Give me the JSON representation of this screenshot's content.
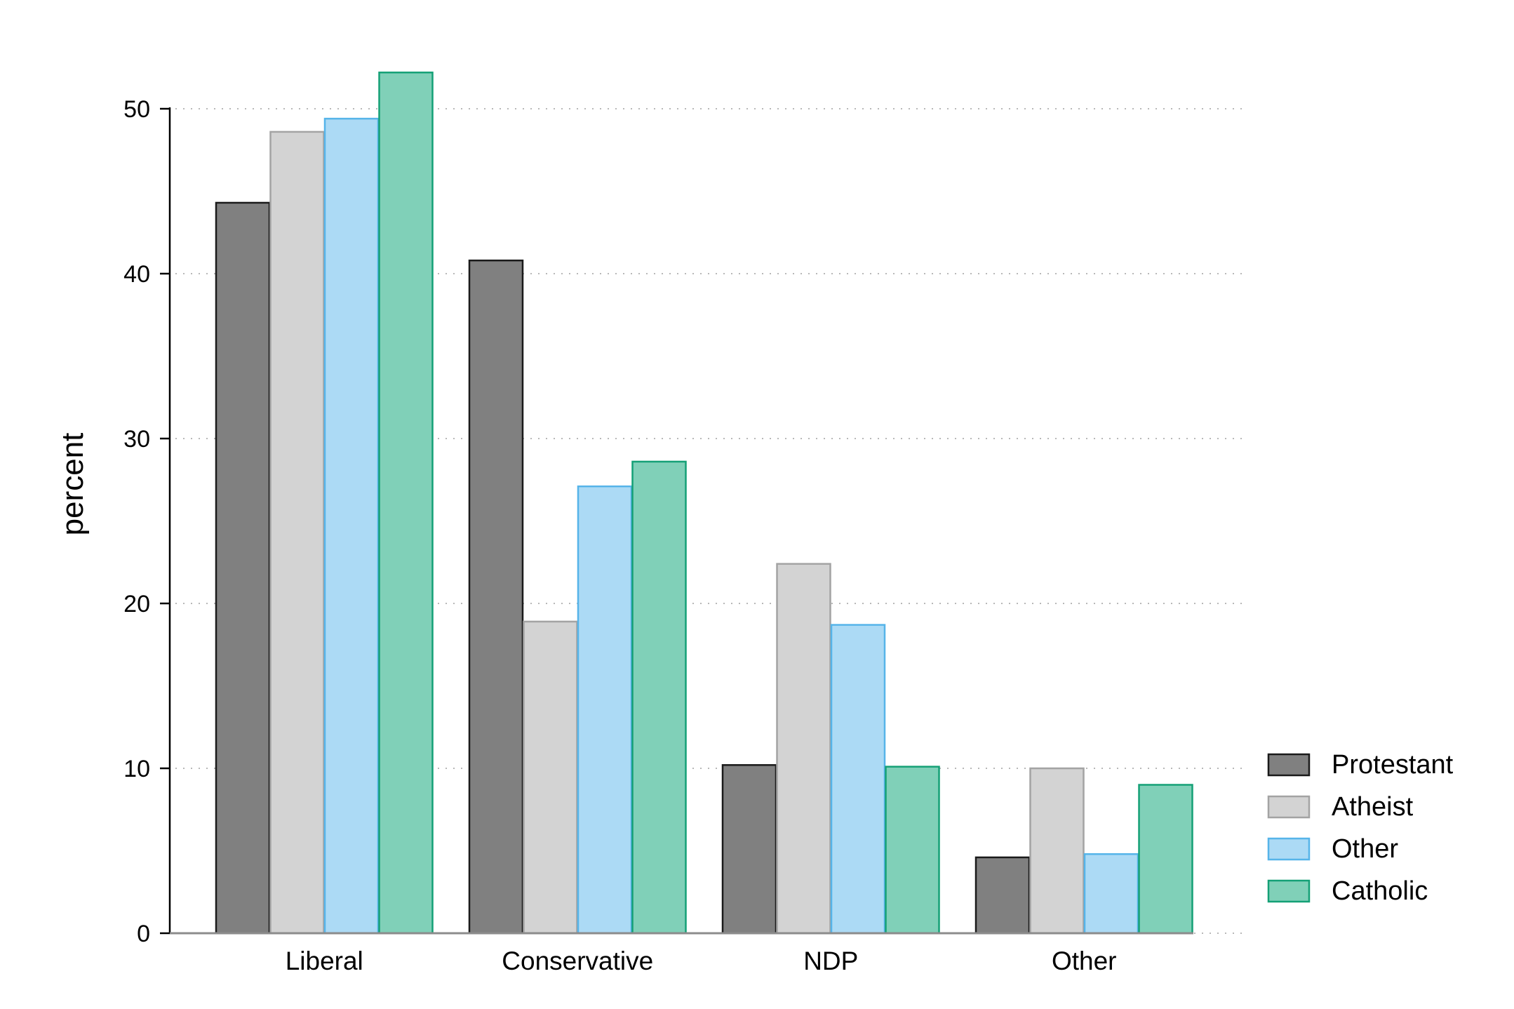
{
  "chart_data": {
    "type": "bar",
    "title": "",
    "xlabel": "",
    "ylabel": "percent",
    "ylim": [
      0,
      53
    ],
    "yticks": [
      0,
      10,
      20,
      30,
      40,
      50
    ],
    "grid": "horizontal-dotted",
    "legend_position": "right",
    "categories": [
      "Liberal",
      "Conservative",
      "NDP",
      "Other"
    ],
    "series": [
      {
        "name": "Protestant",
        "values": [
          44.3,
          40.8,
          10.2,
          4.6
        ],
        "fill": "#808080",
        "stroke": "#1a1a1a"
      },
      {
        "name": "Atheist",
        "values": [
          48.6,
          18.9,
          22.4,
          10.0
        ],
        "fill": "#d3d3d3",
        "stroke": "#a3a3a3"
      },
      {
        "name": "Other",
        "values": [
          49.4,
          27.1,
          18.7,
          4.8
        ],
        "fill": "#acdaf5",
        "stroke": "#56b4e9"
      },
      {
        "name": "Catholic",
        "values": [
          52.2,
          28.6,
          10.1,
          9.0
        ],
        "fill": "#80d0b8",
        "stroke": "#14a076"
      }
    ]
  }
}
